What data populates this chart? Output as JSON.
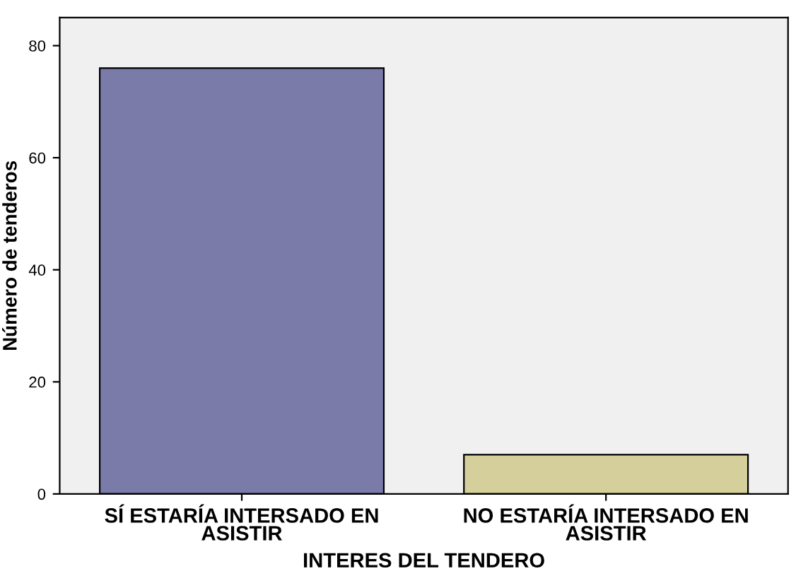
{
  "chart_data": {
    "type": "bar",
    "xlabel": "INTERES DEL TENDERO",
    "ylabel": "Número de tenderos",
    "categories": [
      "SÍ ESTARÍA INTERSADO EN\nASISTIR",
      "NO ESTARÍA INTERSADO EN\nASISTIR"
    ],
    "values": [
      76,
      7
    ],
    "colors": [
      "#7b7baa",
      "#d5d09b"
    ],
    "ylim": [
      0,
      85
    ],
    "yticks": [
      0,
      20,
      40,
      60,
      80
    ],
    "grid": false,
    "legend": false
  }
}
